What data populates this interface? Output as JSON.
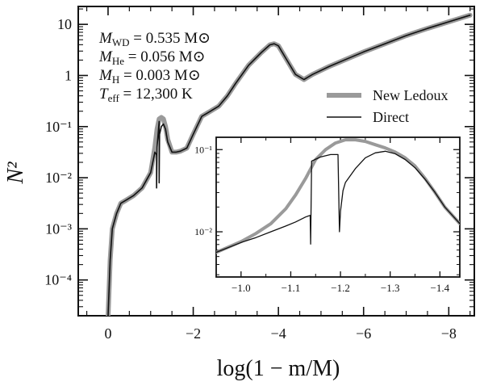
{
  "chart_data": {
    "type": "line",
    "xlabel": "log(1 − m/M)",
    "ylabel": "N²",
    "x_axis_reversed": true,
    "y_scale": "log",
    "xlim": [
      0.7,
      -8.6
    ],
    "ylim_log10": [
      -4.7,
      1.35
    ],
    "x_ticks": [
      0,
      -2,
      -4,
      -6,
      -8
    ],
    "x_tick_labels": [
      "0",
      "−2",
      "−4",
      "−6",
      "−8"
    ],
    "y_ticks_exp": [
      -4,
      -3,
      -2,
      -1,
      0,
      1
    ],
    "y_tick_labels": [
      "10⁻⁴",
      "10⁻³",
      "10⁻²",
      "10⁻¹",
      "1",
      "10"
    ],
    "parameters": [
      {
        "sym": "M",
        "sub": "WD",
        "rest": " = 0.535 M⊙"
      },
      {
        "sym": "M",
        "sub": "He",
        "rest": " = 0.056 M⊙"
      },
      {
        "sym": "M",
        "sub": "H",
        "rest": " = 0.003 M⊙"
      },
      {
        "sym": "T",
        "sub": "eff",
        "rest": " = 12,300 K"
      }
    ],
    "legend": {
      "placement": "upper-right",
      "entries": [
        {
          "label": "New Ledoux",
          "color": "#9a9a9a",
          "style": "thick"
        },
        {
          "label": "Direct",
          "color": "#111111",
          "style": "thin"
        }
      ]
    },
    "series": [
      {
        "name": "New Ledoux",
        "color": "#9a9a9a",
        "x": [
          0.0,
          -0.05,
          -0.1,
          -0.2,
          -0.3,
          -0.4,
          -0.6,
          -0.8,
          -1.0,
          -1.1,
          -1.15,
          -1.2,
          -1.25,
          -1.3,
          -1.35,
          -1.4,
          -1.5,
          -1.6,
          -1.7,
          -1.85,
          -2.0,
          -2.2,
          -2.4,
          -2.6,
          -2.8,
          -3.0,
          -3.3,
          -3.6,
          -3.8,
          -3.9,
          -4.0,
          -4.2,
          -4.4,
          -4.6,
          -4.8,
          -5.2,
          -5.6,
          -6.0,
          -6.5,
          -7.0,
          -7.5,
          -8.0,
          -8.5
        ],
        "log10": [
          -4.7,
          -3.6,
          -3.0,
          -2.7,
          -2.5,
          -2.45,
          -2.35,
          -2.2,
          -1.9,
          -1.4,
          -1.05,
          -0.85,
          -0.82,
          -0.85,
          -1.0,
          -1.25,
          -1.5,
          -1.5,
          -1.48,
          -1.42,
          -1.15,
          -0.8,
          -0.7,
          -0.6,
          -0.4,
          -0.15,
          0.2,
          0.45,
          0.6,
          0.62,
          0.58,
          0.3,
          0.02,
          -0.08,
          0.02,
          0.18,
          0.32,
          0.46,
          0.62,
          0.78,
          0.92,
          1.05,
          1.18
        ]
      },
      {
        "name": "Direct",
        "color": "#111111",
        "x": [
          0.0,
          -0.05,
          -0.1,
          -0.2,
          -0.3,
          -0.4,
          -0.6,
          -0.8,
          -1.0,
          -1.1,
          -1.14,
          -1.14,
          -1.15,
          -1.2,
          -1.2,
          -1.21,
          -1.25,
          -1.3,
          -1.35,
          -1.4,
          -1.5,
          -1.6,
          -1.7,
          -1.85,
          -2.0,
          -2.2,
          -2.4,
          -2.6,
          -2.8,
          -3.0,
          -3.3,
          -3.6,
          -3.8,
          -3.9,
          -4.0,
          -4.2,
          -4.4,
          -4.6,
          -4.8,
          -5.2,
          -5.6,
          -6.0,
          -6.5,
          -7.0,
          -7.5,
          -8.0,
          -8.5
        ],
        "log10": [
          -4.7,
          -3.6,
          -3.0,
          -2.7,
          -2.5,
          -2.45,
          -2.35,
          -2.2,
          -1.9,
          -1.5,
          -1.55,
          -2.2,
          -1.4,
          -0.9,
          -2.1,
          -1.15,
          -1.0,
          -0.95,
          -1.05,
          -1.3,
          -1.5,
          -1.5,
          -1.48,
          -1.42,
          -1.15,
          -0.8,
          -0.7,
          -0.6,
          -0.4,
          -0.15,
          0.2,
          0.45,
          0.6,
          0.62,
          0.58,
          0.3,
          0.02,
          -0.08,
          0.02,
          0.18,
          0.32,
          0.46,
          0.62,
          0.78,
          0.92,
          1.05,
          1.18
        ]
      }
    ],
    "inset": {
      "xlim": [
        -0.95,
        -1.44
      ],
      "ylim_log10": [
        -2.55,
        -0.85
      ],
      "x_ticks": [
        -1.0,
        -1.1,
        -1.2,
        -1.3,
        -1.4
      ],
      "x_tick_labels": [
        "−1.0",
        "−1.1",
        "−1.2",
        "−1.3",
        "−1.4"
      ],
      "y_ticks_exp": [
        -2,
        -1
      ],
      "y_tick_labels": [
        "10⁻²",
        "10⁻¹"
      ],
      "series": [
        {
          "name": "New Ledoux",
          "color": "#9a9a9a",
          "x": [
            -0.95,
            -1.0,
            -1.03,
            -1.06,
            -1.09,
            -1.11,
            -1.13,
            -1.15,
            -1.17,
            -1.19,
            -1.21,
            -1.23,
            -1.25,
            -1.27,
            -1.29,
            -1.31,
            -1.33,
            -1.35,
            -1.37,
            -1.39,
            -1.41,
            -1.44
          ],
          "log10": [
            -2.25,
            -2.12,
            -2.02,
            -1.9,
            -1.72,
            -1.55,
            -1.35,
            -1.12,
            -1.0,
            -0.92,
            -0.88,
            -0.88,
            -0.9,
            -0.94,
            -0.98,
            -1.03,
            -1.1,
            -1.2,
            -1.35,
            -1.52,
            -1.7,
            -1.9
          ]
        },
        {
          "name": "Direct",
          "color": "#111111",
          "x": [
            -0.95,
            -1.0,
            -1.03,
            -1.06,
            -1.09,
            -1.11,
            -1.13,
            -1.139,
            -1.14,
            -1.142,
            -1.16,
            -1.18,
            -1.195,
            -1.198,
            -1.2,
            -1.205,
            -1.21,
            -1.23,
            -1.25,
            -1.27,
            -1.29,
            -1.31,
            -1.33,
            -1.35,
            -1.37,
            -1.39,
            -1.41,
            -1.44
          ],
          "log10": [
            -2.25,
            -2.13,
            -2.07,
            -2.0,
            -1.93,
            -1.88,
            -1.82,
            -1.8,
            -2.15,
            -1.14,
            -1.09,
            -1.06,
            -1.06,
            -2.0,
            -1.75,
            -1.5,
            -1.4,
            -1.23,
            -1.1,
            -1.04,
            -1.02,
            -1.05,
            -1.12,
            -1.22,
            -1.36,
            -1.52,
            -1.7,
            -1.9
          ]
        }
      ]
    }
  }
}
